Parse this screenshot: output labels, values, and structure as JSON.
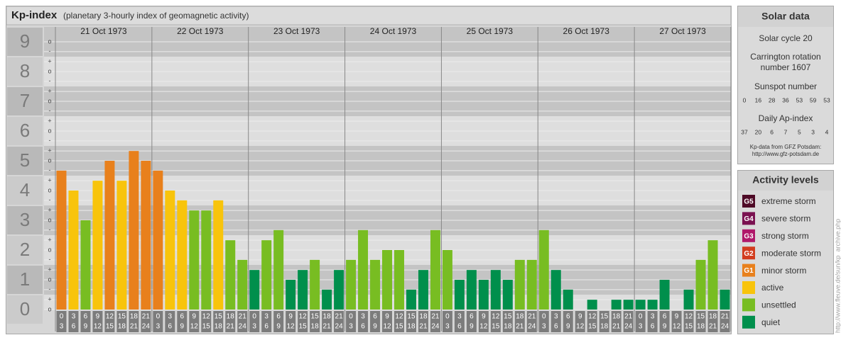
{
  "chart_data": {
    "type": "bar",
    "title": "Kp-index",
    "subtitle": "(planetary 3-hourly index of geomagnetic activity)",
    "ylim": [
      0,
      9.5
    ],
    "yticks": [
      0,
      1,
      2,
      3,
      4,
      5,
      6,
      7,
      8,
      9
    ],
    "minor_yticks": [
      {
        "value": 0,
        "label": "o"
      },
      {
        "value": 0.33,
        "label": "+"
      },
      {
        "value": 0.67,
        "label": "-"
      },
      {
        "value": 1,
        "label": "o"
      },
      {
        "value": 1.33,
        "label": "+"
      },
      {
        "value": 1.67,
        "label": "-"
      },
      {
        "value": 2,
        "label": "o"
      },
      {
        "value": 2.33,
        "label": "+"
      },
      {
        "value": 2.67,
        "label": "-"
      },
      {
        "value": 3,
        "label": "o"
      },
      {
        "value": 3.33,
        "label": "+"
      },
      {
        "value": 3.67,
        "label": "-"
      },
      {
        "value": 4,
        "label": "o"
      },
      {
        "value": 4.33,
        "label": "+"
      },
      {
        "value": 4.67,
        "label": "-"
      },
      {
        "value": 5,
        "label": "o"
      },
      {
        "value": 5.33,
        "label": "+"
      },
      {
        "value": 5.67,
        "label": "-"
      },
      {
        "value": 6,
        "label": "o"
      },
      {
        "value": 6.33,
        "label": "+"
      },
      {
        "value": 6.67,
        "label": "-"
      },
      {
        "value": 7,
        "label": "o"
      },
      {
        "value": 7.33,
        "label": "+"
      },
      {
        "value": 7.67,
        "label": "-"
      },
      {
        "value": 8,
        "label": "o"
      },
      {
        "value": 8.33,
        "label": "+"
      },
      {
        "value": 8.67,
        "label": "-"
      },
      {
        "value": 9,
        "label": "o"
      }
    ],
    "grid": true,
    "hour_ranges": [
      [
        0,
        3
      ],
      [
        3,
        6
      ],
      [
        6,
        9
      ],
      [
        9,
        12
      ],
      [
        12,
        15
      ],
      [
        15,
        18
      ],
      [
        18,
        21
      ],
      [
        21,
        24
      ]
    ],
    "days": [
      {
        "date": "21 Oct 1973",
        "values": [
          4.67,
          4,
          3,
          4.33,
          5,
          4.33,
          5.33,
          5
        ],
        "colors": [
          "#e8801c",
          "#f8c40c",
          "#78bd22",
          "#f8c40c",
          "#e8801c",
          "#f8c40c",
          "#e8801c",
          "#e8801c"
        ]
      },
      {
        "date": "22 Oct 1973",
        "values": [
          4.67,
          4,
          3.67,
          3.33,
          3.33,
          3.67,
          2.33,
          1.67
        ],
        "colors": [
          "#e8801c",
          "#f8c40c",
          "#f8c40c",
          "#78bd22",
          "#78bd22",
          "#f8c40c",
          "#78bd22",
          "#78bd22"
        ]
      },
      {
        "date": "23 Oct 1973",
        "values": [
          1.33,
          2.33,
          2.67,
          1,
          1.33,
          1.67,
          0.67,
          1.33
        ],
        "colors": [
          "#008f4c",
          "#78bd22",
          "#78bd22",
          "#008f4c",
          "#008f4c",
          "#78bd22",
          "#008f4c",
          "#008f4c"
        ]
      },
      {
        "date": "24 Oct 1973",
        "values": [
          1.67,
          2.67,
          1.67,
          2,
          2,
          0.67,
          1.33,
          2.67
        ],
        "colors": [
          "#78bd22",
          "#78bd22",
          "#78bd22",
          "#78bd22",
          "#78bd22",
          "#008f4c",
          "#008f4c",
          "#78bd22"
        ]
      },
      {
        "date": "25 Oct 1973",
        "values": [
          2,
          1,
          1.33,
          1,
          1.33,
          1,
          1.67,
          1.67
        ],
        "colors": [
          "#78bd22",
          "#008f4c",
          "#008f4c",
          "#008f4c",
          "#008f4c",
          "#008f4c",
          "#78bd22",
          "#78bd22"
        ]
      },
      {
        "date": "26 Oct 1973",
        "values": [
          2.67,
          1.33,
          0.67,
          0,
          0.33,
          0,
          0.33,
          0.33
        ],
        "colors": [
          "#78bd22",
          "#008f4c",
          "#008f4c",
          "#008f4c",
          "#008f4c",
          "#008f4c",
          "#008f4c",
          "#008f4c"
        ]
      },
      {
        "date": "27 Oct 1973",
        "values": [
          0.33,
          0.33,
          1,
          0,
          0.67,
          1.67,
          2.33,
          0.67
        ],
        "colors": [
          "#008f4c",
          "#008f4c",
          "#008f4c",
          "#008f4c",
          "#008f4c",
          "#78bd22",
          "#78bd22",
          "#008f4c"
        ]
      }
    ]
  },
  "solar_data": {
    "title": "Solar data",
    "solar_cycle": "Solar cycle 20",
    "carrington": [
      "Carrington rotation",
      "number 1607"
    ],
    "sunspot_title": "Sunspot number",
    "sunspot_numbers": [
      0,
      16,
      28,
      36,
      53,
      59,
      53
    ],
    "ap_title": "Daily Ap-index",
    "ap_index": [
      37,
      20,
      6,
      7,
      5,
      3,
      4
    ],
    "source": [
      "Kp-data from GFZ Potsdam:",
      "http://www.gfz-potsdam.de"
    ]
  },
  "activity_levels": {
    "title": "Activity levels",
    "items": [
      {
        "code": "G5",
        "label": "extreme storm",
        "color": "#4e0a26"
      },
      {
        "code": "G4",
        "label": "severe storm",
        "color": "#7a1150"
      },
      {
        "code": "G3",
        "label": "strong storm",
        "color": "#b0186a"
      },
      {
        "code": "G2",
        "label": "moderate storm",
        "color": "#d23c1e"
      },
      {
        "code": "G1",
        "label": "minor storm",
        "color": "#e8801c"
      },
      {
        "label": "active",
        "color": "#f8c40c"
      },
      {
        "label": "unsettled",
        "color": "#78bd22"
      },
      {
        "label": "quiet",
        "color": "#008f4c"
      }
    ]
  },
  "source_url": "http://www.fleuve.de/sun/kp_archive.php"
}
